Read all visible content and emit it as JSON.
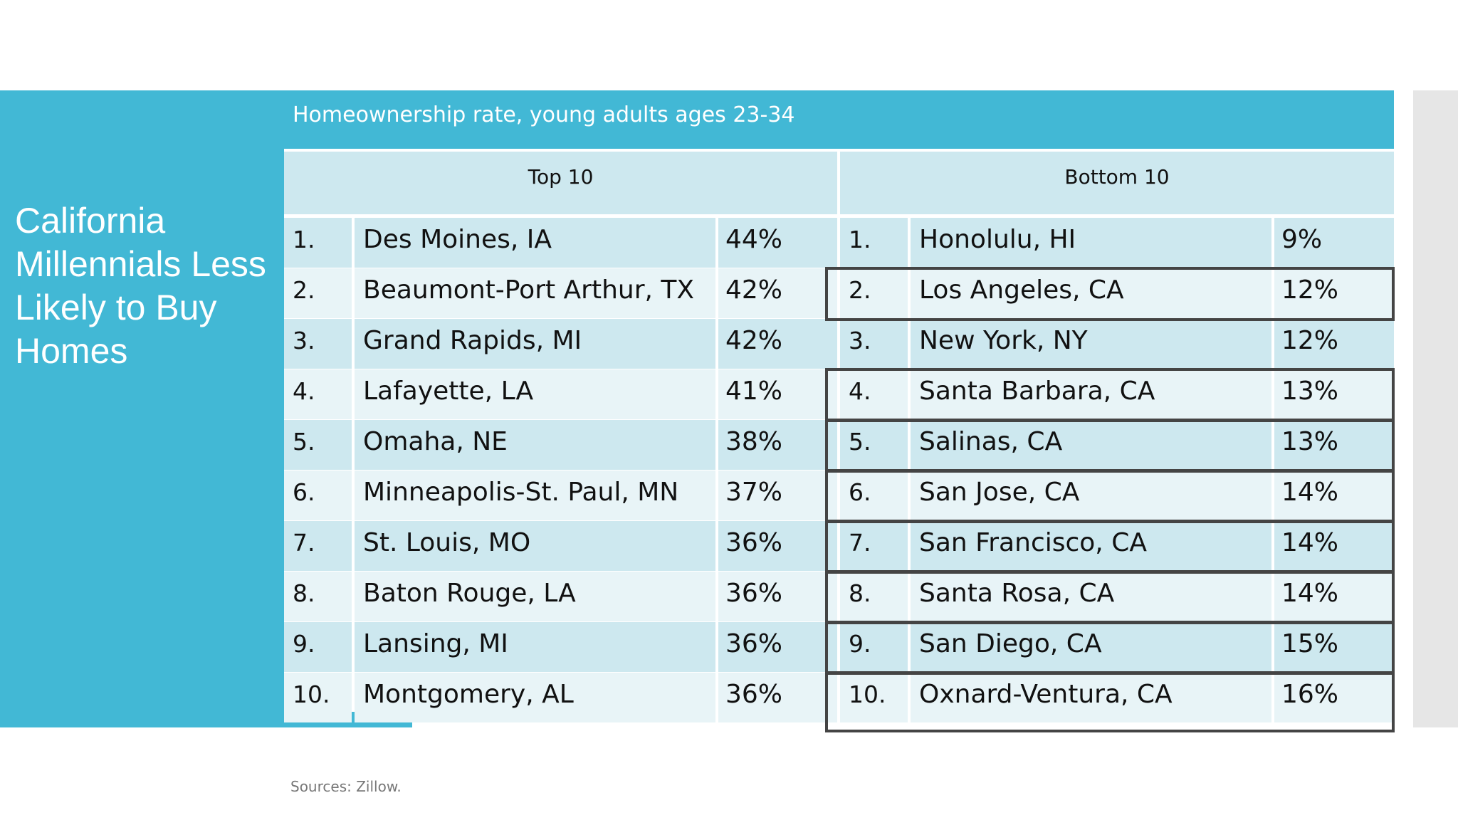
{
  "slide": {
    "title": "California Millennials Less Likely to Buy Homes",
    "sources": "Sources: Zillow."
  },
  "table": {
    "caption": "Homeownership rate, young adults ages 23-34",
    "top_header": "Top 10",
    "bottom_header": "Bottom 10",
    "rows": [
      {
        "top_rank": "1.",
        "top_city": "Des Moines, IA",
        "top_pct": "44%",
        "bottom_rank": "1.",
        "bottom_city": "Honolulu, HI",
        "bottom_pct": "9%"
      },
      {
        "top_rank": "2.",
        "top_city": "Beaumont-Port Arthur, TX",
        "top_pct": "42%",
        "bottom_rank": "2.",
        "bottom_city": "Los Angeles, CA",
        "bottom_pct": "12%"
      },
      {
        "top_rank": "3.",
        "top_city": "Grand Rapids, MI",
        "top_pct": "42%",
        "bottom_rank": "3.",
        "bottom_city": "New York, NY",
        "bottom_pct": "12%"
      },
      {
        "top_rank": "4.",
        "top_city": "Lafayette, LA",
        "top_pct": "41%",
        "bottom_rank": "4.",
        "bottom_city": "Santa Barbara, CA",
        "bottom_pct": "13%"
      },
      {
        "top_rank": "5.",
        "top_city": "Omaha, NE",
        "top_pct": "38%",
        "bottom_rank": "5.",
        "bottom_city": "Salinas, CA",
        "bottom_pct": "13%"
      },
      {
        "top_rank": "6.",
        "top_city": "Minneapolis-St. Paul, MN",
        "top_pct": "37%",
        "bottom_rank": "6.",
        "bottom_city": "San Jose, CA",
        "bottom_pct": "14%"
      },
      {
        "top_rank": "7.",
        "top_city": "St. Louis, MO",
        "top_pct": "36%",
        "bottom_rank": "7.",
        "bottom_city": "San Francisco, CA",
        "bottom_pct": "14%"
      },
      {
        "top_rank": "8.",
        "top_city": "Baton Rouge, LA",
        "top_pct": "36%",
        "bottom_rank": "8.",
        "bottom_city": "Santa Rosa, CA",
        "bottom_pct": "14%"
      },
      {
        "top_rank": "9.",
        "top_city": "Lansing, MI",
        "top_pct": "36%",
        "bottom_rank": "9.",
        "bottom_city": "San Diego, CA",
        "bottom_pct": "15%"
      },
      {
        "top_rank": "10.",
        "top_city": "Montgomery, AL",
        "top_pct": "36%",
        "bottom_rank": "10.",
        "bottom_city": "Oxnard-Ventura, CA",
        "bottom_pct": "16%"
      }
    ],
    "highlighted_bottom_ranks": [
      "2.",
      "4.",
      "5.",
      "6.",
      "7.",
      "8.",
      "9.",
      "10."
    ]
  },
  "colors": {
    "accent": "#42b8d5",
    "row_dark": "#cde8ef",
    "row_light": "#e8f4f7",
    "highlight_border": "#444444"
  }
}
